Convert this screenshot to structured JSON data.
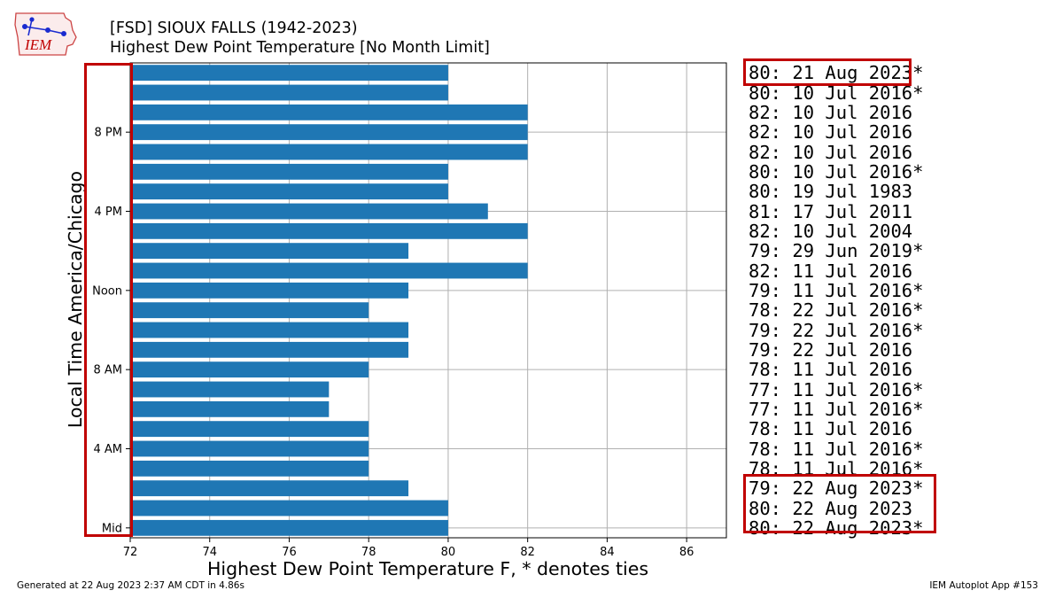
{
  "header": {
    "logo_text": "IEM",
    "title_line1": "[FSD] SIOUX FALLS (1942-2023)",
    "title_line2": "Highest Dew Point Temperature [No Month Limit]"
  },
  "footer": {
    "generated": "Generated at 22 Aug 2023 2:37 AM CDT in 4.86s",
    "app": "IEM Autoplot App #153"
  },
  "colors": {
    "bar": "#1f77b4",
    "grid": "#b0b0b0",
    "highlight": "#c00000"
  },
  "chart_data": {
    "type": "bar",
    "orientation": "horizontal",
    "xlabel": "Highest Dew Point Temperature F, * denotes ties",
    "ylabel": "Local Time America/Chicago",
    "xlim": [
      72,
      87
    ],
    "xticks": [
      72,
      74,
      76,
      78,
      80,
      82,
      84,
      86
    ],
    "ytick_labels": [
      {
        "hour": 0,
        "label": "Mid"
      },
      {
        "hour": 4,
        "label": "4 AM"
      },
      {
        "hour": 8,
        "label": "8 AM"
      },
      {
        "hour": 12,
        "label": "Noon"
      },
      {
        "hour": 16,
        "label": "4 PM"
      },
      {
        "hour": 20,
        "label": "8 PM"
      }
    ],
    "grid": true,
    "hours": [
      0,
      1,
      2,
      3,
      4,
      5,
      6,
      7,
      8,
      9,
      10,
      11,
      12,
      13,
      14,
      15,
      16,
      17,
      18,
      19,
      20,
      21,
      22,
      23
    ],
    "values": [
      80,
      80,
      79,
      78,
      78,
      78,
      77,
      77,
      78,
      79,
      79,
      78,
      79,
      82,
      79,
      82,
      81,
      80,
      80,
      82,
      82,
      82,
      80,
      80
    ],
    "annotations": [
      "80: 22 Aug 2023*",
      "80: 22 Aug 2023",
      "79: 22 Aug 2023*",
      "78: 11 Jul 2016*",
      "78: 11 Jul 2016*",
      "78: 11 Jul 2016",
      "77: 11 Jul 2016*",
      "77: 11 Jul 2016*",
      "78: 11 Jul 2016",
      "79: 22 Jul 2016",
      "79: 22 Jul 2016*",
      "78: 22 Jul 2016*",
      "79: 11 Jul 2016*",
      "82: 11 Jul 2016",
      "79: 29 Jun 2019*",
      "82: 10 Jul 2004",
      "81: 17 Jul 2011",
      "80: 19 Jul 1983",
      "80: 10 Jul 2016*",
      "82: 10 Jul 2016",
      "82: 10 Jul 2016",
      "82: 10 Jul 2016",
      "80: 10 Jul 2016*",
      "80: 21 Aug 2023*"
    ]
  }
}
